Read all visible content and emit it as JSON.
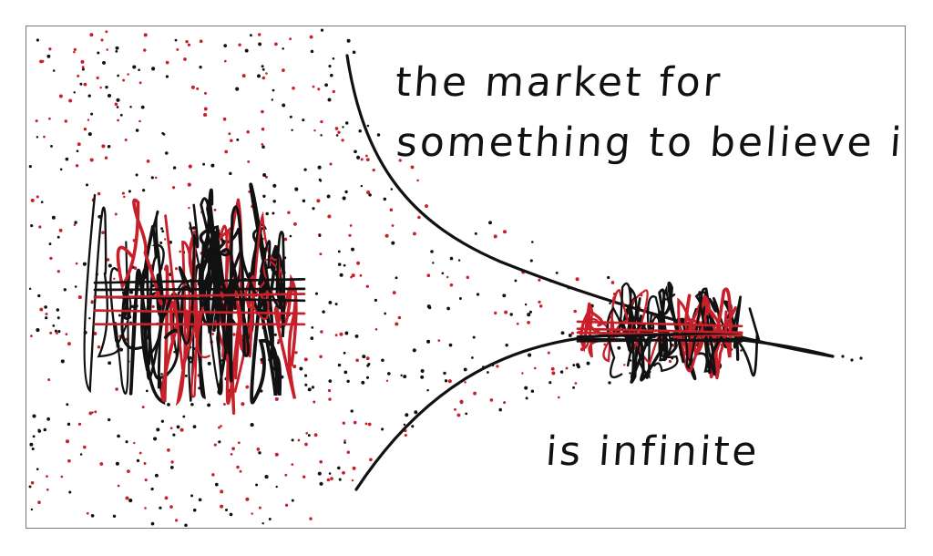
{
  "caption": {
    "line1": "the market for",
    "line2": "something to believe in",
    "line3": "is infinite"
  },
  "colors": {
    "ink": "#111111",
    "accent": "#c8202a",
    "frame": "#7a7a7a",
    "background": "#ffffff"
  }
}
